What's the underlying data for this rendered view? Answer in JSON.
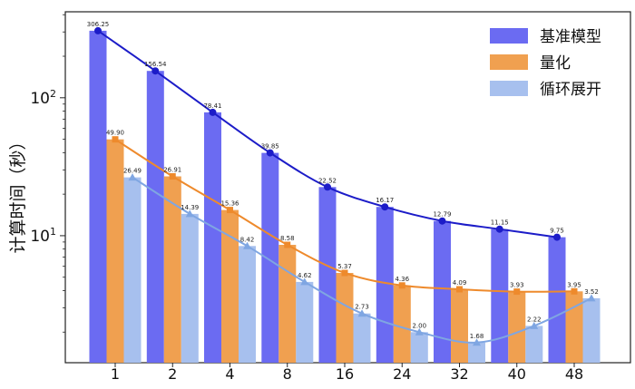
{
  "colors": {
    "baseline_bar": "#6b6bf2",
    "baseline_line": "#1c1cc8",
    "quant_bar": "#f0a050",
    "quant_line": "#ee8a2c",
    "loop_bar": "#a7c0ee",
    "loop_line": "#7fa6e2"
  },
  "chart_data": {
    "type": "bar",
    "ylabel": "计算时间（秒）",
    "yscale": "log",
    "ylim": [
      1.2,
      420
    ],
    "y_ticks": [
      {
        "value": 10,
        "label": "10",
        "sup": "1"
      },
      {
        "value": 100,
        "label": "10",
        "sup": "2"
      }
    ],
    "categories": [
      "1",
      "2",
      "4",
      "8",
      "16",
      "24",
      "32",
      "40",
      "48"
    ],
    "legend_position": "top-right",
    "series": [
      {
        "name": "基准模型",
        "values": [
          306.25,
          156.54,
          78.41,
          39.85,
          22.52,
          16.17,
          12.79,
          11.15,
          9.75
        ],
        "labels": [
          "306.25",
          "156.54",
          "78.41",
          "39.85",
          "22.52",
          "16.17",
          "12.79",
          "11.15",
          "9.75"
        ],
        "marker": "circle"
      },
      {
        "name": "量化",
        "values": [
          49.9,
          26.91,
          15.36,
          8.58,
          5.37,
          4.36,
          4.09,
          3.93,
          3.95
        ],
        "labels": [
          "49.90",
          "26.91",
          "15.36",
          "8.58",
          "5.37",
          "4.36",
          "4.09",
          "3.93",
          "3.95"
        ],
        "marker": "square"
      },
      {
        "name": "循环展开",
        "values": [
          26.49,
          14.39,
          8.42,
          4.62,
          2.73,
          2.0,
          1.68,
          2.22,
          3.52
        ],
        "labels": [
          "26.49",
          "14.39",
          "8.42",
          "4.62",
          "2.73",
          "2.00",
          "1.68",
          "2.22",
          "3.52"
        ],
        "marker": "triangle"
      }
    ]
  }
}
